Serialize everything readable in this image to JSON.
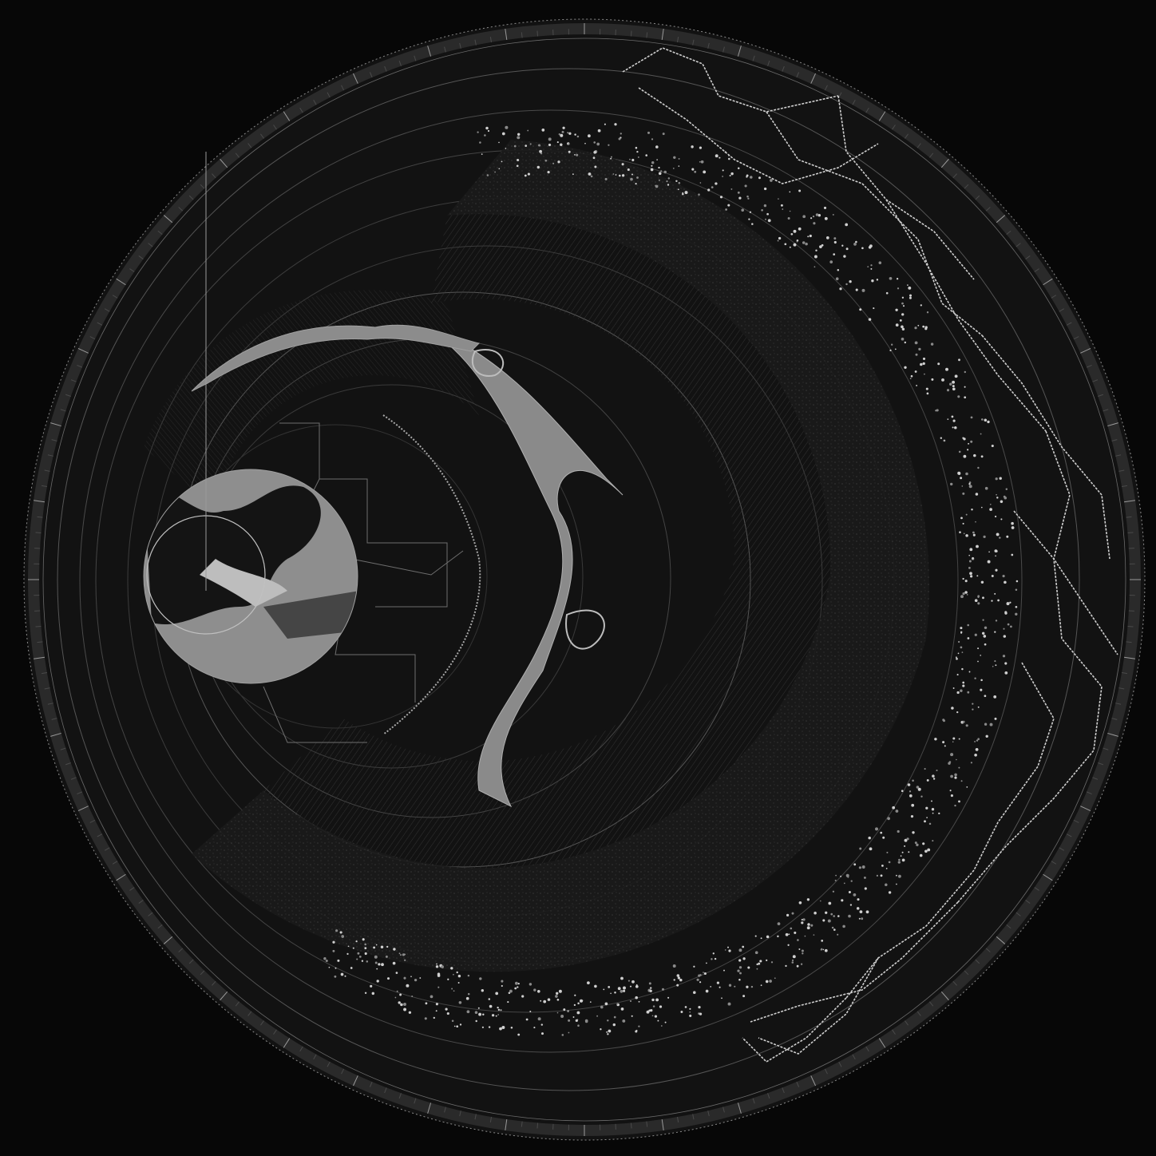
{
  "map": {
    "style": "monochrome concentric-ring cartographic collage",
    "palette": {
      "background": "#070707",
      "disc": "#141414",
      "ring_band": "#1c1c1c",
      "ring_band_dark": "#0e0e0e",
      "line": "#a8a8a8",
      "line_faint": "#5a5a5a",
      "water_fill": "#8c8c8c",
      "water_light": "#b4b4b4",
      "highlight": "#d8d8d8"
    },
    "layers": [
      "outer-frame-ring",
      "road-network",
      "settlement-dot-band",
      "terrain-texture-bands",
      "river-channel",
      "coastline-band",
      "regional-boundaries",
      "core-water-body",
      "inner-focus-circle"
    ]
  }
}
